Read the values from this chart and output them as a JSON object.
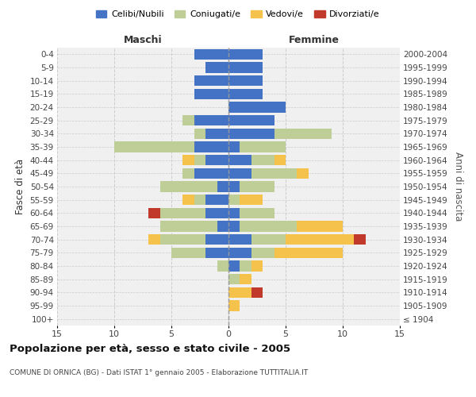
{
  "age_groups": [
    "100+",
    "95-99",
    "90-94",
    "85-89",
    "80-84",
    "75-79",
    "70-74",
    "65-69",
    "60-64",
    "55-59",
    "50-54",
    "45-49",
    "40-44",
    "35-39",
    "30-34",
    "25-29",
    "20-24",
    "15-19",
    "10-14",
    "5-9",
    "0-4"
  ],
  "birth_years": [
    "≤ 1904",
    "1905-1909",
    "1910-1914",
    "1915-1919",
    "1920-1924",
    "1925-1929",
    "1930-1934",
    "1935-1939",
    "1940-1944",
    "1945-1949",
    "1950-1954",
    "1955-1959",
    "1960-1964",
    "1965-1969",
    "1970-1974",
    "1975-1979",
    "1980-1984",
    "1985-1989",
    "1990-1994",
    "1995-1999",
    "2000-2004"
  ],
  "maschi": {
    "celibi": [
      0,
      0,
      0,
      0,
      0,
      2,
      2,
      1,
      2,
      2,
      1,
      3,
      2,
      3,
      2,
      3,
      0,
      3,
      3,
      2,
      3
    ],
    "coniugati": [
      0,
      0,
      0,
      0,
      1,
      3,
      4,
      5,
      4,
      1,
      5,
      1,
      1,
      7,
      1,
      1,
      0,
      0,
      0,
      0,
      0
    ],
    "vedovi": [
      0,
      0,
      0,
      0,
      0,
      0,
      1,
      0,
      0,
      1,
      0,
      0,
      1,
      0,
      0,
      0,
      0,
      0,
      0,
      0,
      0
    ],
    "divorziati": [
      0,
      0,
      0,
      0,
      0,
      0,
      0,
      0,
      1,
      0,
      0,
      0,
      0,
      0,
      0,
      0,
      0,
      0,
      0,
      0,
      0
    ]
  },
  "femmine": {
    "nubili": [
      0,
      0,
      0,
      0,
      1,
      2,
      2,
      1,
      1,
      0,
      1,
      2,
      2,
      1,
      4,
      4,
      5,
      3,
      3,
      3,
      3
    ],
    "coniugate": [
      0,
      0,
      0,
      1,
      1,
      2,
      3,
      5,
      3,
      1,
      3,
      4,
      2,
      4,
      5,
      0,
      0,
      0,
      0,
      0,
      0
    ],
    "vedove": [
      0,
      1,
      2,
      1,
      1,
      6,
      6,
      4,
      0,
      2,
      0,
      1,
      1,
      0,
      0,
      0,
      0,
      0,
      0,
      0,
      0
    ],
    "divorziate": [
      0,
      0,
      1,
      0,
      0,
      0,
      1,
      0,
      0,
      0,
      0,
      0,
      0,
      0,
      0,
      0,
      0,
      0,
      0,
      0,
      0
    ]
  },
  "colors": {
    "celibi_nubili": "#4472C4",
    "coniugati": "#BFCD96",
    "vedovi": "#F5C24C",
    "divorziati": "#C0392B"
  },
  "xlim": 15,
  "title": "Popolazione per età, sesso e stato civile - 2005",
  "subtitle": "COMUNE DI ORNICA (BG) - Dati ISTAT 1° gennaio 2005 - Elaborazione TUTTITALIA.IT",
  "ylabel_left": "Fasce di età",
  "ylabel_right": "Anni di nascita",
  "xlabel_maschi": "Maschi",
  "xlabel_femmine": "Femmine",
  "legend_labels": [
    "Celibi/Nubili",
    "Coniugati/e",
    "Vedovi/e",
    "Divorziati/e"
  ]
}
